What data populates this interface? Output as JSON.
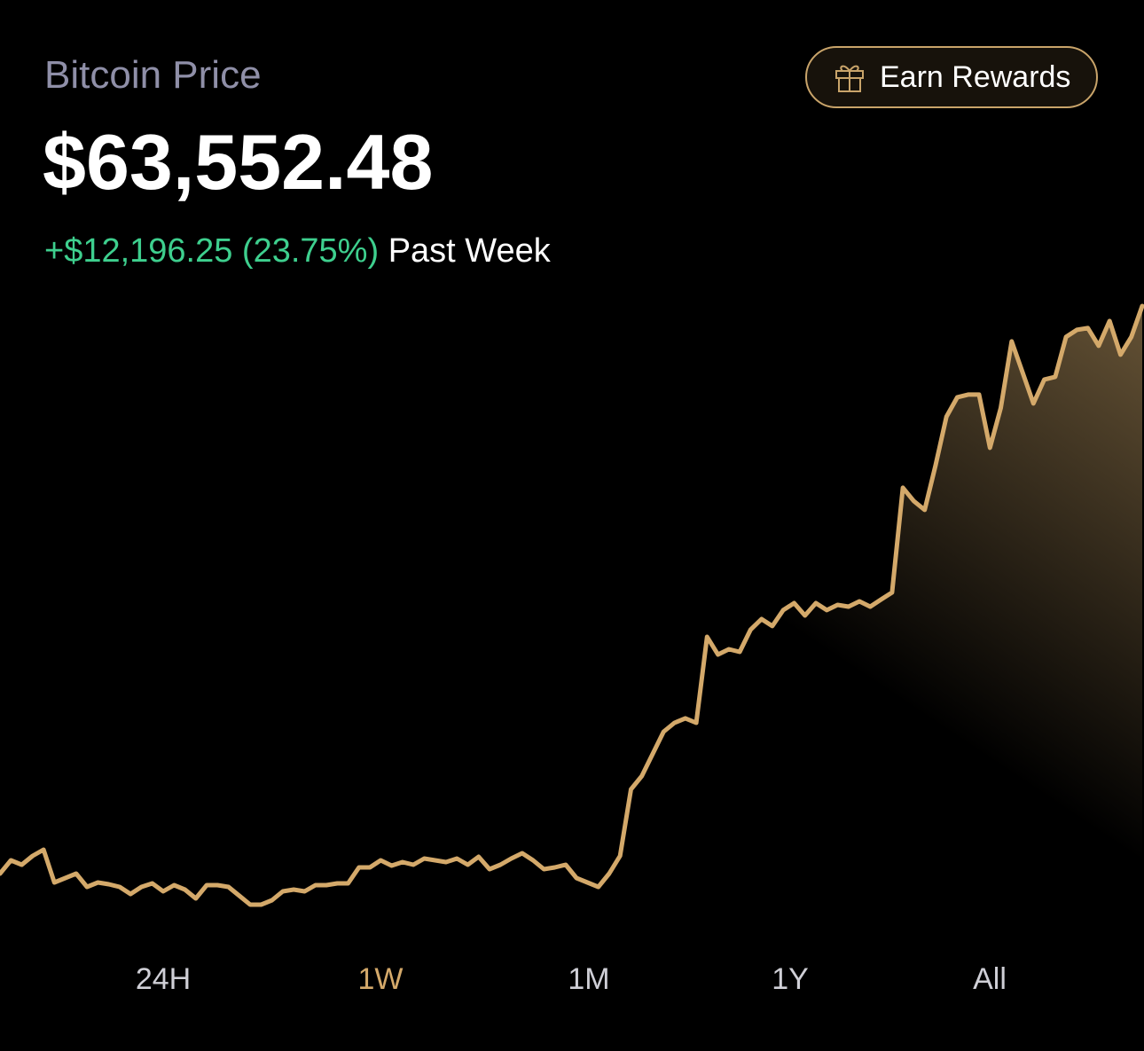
{
  "header": {
    "title": "Bitcoin Price",
    "price": "$63,552.48",
    "change": "+$12,196.25 (23.75%)",
    "period": "Past Week",
    "button": "Earn Rewards"
  },
  "chart_data": {
    "type": "line",
    "color": "#d4a96a",
    "values": [
      51356,
      51642,
      51547,
      51737,
      51871,
      51165,
      51261,
      51356,
      51070,
      51165,
      51127,
      51070,
      50918,
      51070,
      51146,
      50975,
      51108,
      51013,
      50822,
      51108,
      51108,
      51070,
      50880,
      50689,
      50689,
      50784,
      50975,
      51013,
      50975,
      51108,
      51108,
      51146,
      51146,
      51489,
      51489,
      51642,
      51528,
      51604,
      51547,
      51680,
      51642,
      51604,
      51680,
      51547,
      51718,
      51451,
      51547,
      51680,
      51794,
      51642,
      51451,
      51489,
      51547,
      51261,
      51165,
      51070,
      51356,
      51737,
      53167,
      53453,
      53929,
      54406,
      54596,
      54692,
      54596,
      56445,
      56064,
      56178,
      56121,
      56598,
      56826,
      56674,
      57017,
      57169,
      56902,
      57169,
      57017,
      57131,
      57093,
      57207,
      57093,
      57246,
      57398,
      59647,
      59361,
      59171,
      60124,
      61172,
      61591,
      61648,
      61648,
      60505,
      61363,
      62792,
      62125,
      61458,
      61972,
      62030,
      62887,
      63040,
      63078,
      62697,
      63231,
      62506,
      62887,
      63552.48
    ]
  },
  "range_tabs": {
    "labels": [
      "24H",
      "1W",
      "1M",
      "1Y",
      "All"
    ],
    "selected": "1W"
  }
}
